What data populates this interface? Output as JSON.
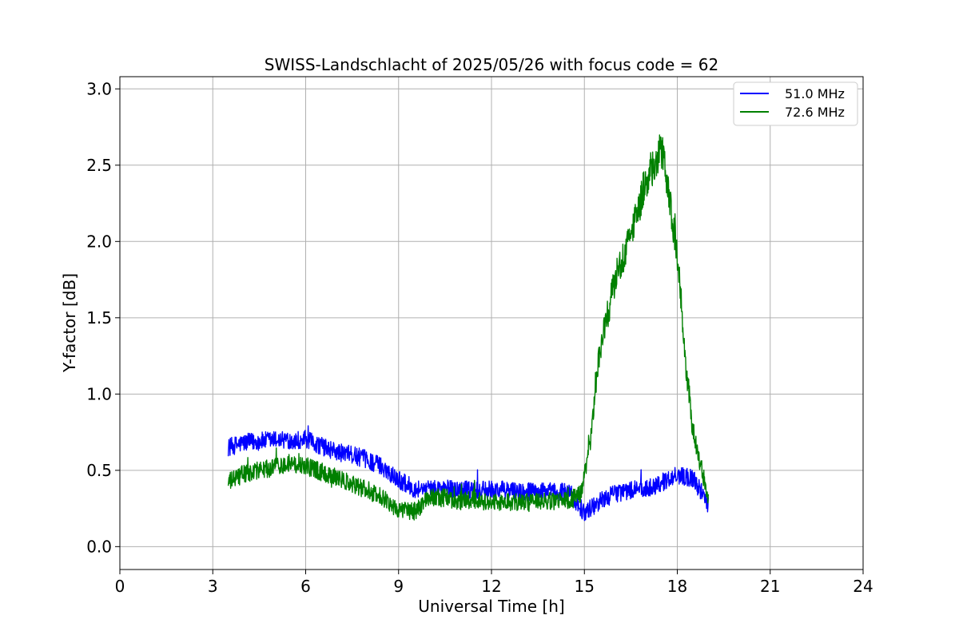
{
  "chart_data": {
    "type": "line",
    "title": "SWISS-Landschlacht of 2025/05/26 with focus code = 62",
    "xlabel": "Universal Time [h]",
    "ylabel": "Y-factor [dB]",
    "xlim": [
      0,
      24
    ],
    "ylim": [
      -0.15,
      3.08
    ],
    "xticks": [
      0,
      3,
      6,
      9,
      12,
      15,
      18,
      21,
      24
    ],
    "xtick_labels": [
      "0",
      "3",
      "6",
      "9",
      "12",
      "15",
      "18",
      "21",
      "24"
    ],
    "yticks": [
      0.0,
      0.5,
      1.0,
      1.5,
      2.0,
      2.5,
      3.0
    ],
    "ytick_labels": [
      "0.0",
      "0.5",
      "1.0",
      "1.5",
      "2.0",
      "2.5",
      "3.0"
    ],
    "grid": true,
    "legend_position": "top-right",
    "series": [
      {
        "name": "51.0 MHz",
        "color": "#0000ff",
        "x": [
          3.5,
          4.0,
          4.5,
          5.0,
          5.5,
          6.0,
          6.5,
          7.0,
          7.5,
          8.0,
          8.5,
          9.0,
          9.5,
          10.0,
          10.5,
          11.0,
          11.5,
          12.0,
          12.5,
          13.0,
          13.5,
          14.0,
          14.5,
          15.0,
          15.5,
          16.0,
          16.5,
          17.0,
          17.5,
          18.0,
          18.5,
          19.0
        ],
        "y": [
          0.65,
          0.68,
          0.69,
          0.7,
          0.7,
          0.7,
          0.66,
          0.62,
          0.6,
          0.57,
          0.52,
          0.44,
          0.38,
          0.38,
          0.38,
          0.37,
          0.37,
          0.37,
          0.37,
          0.36,
          0.36,
          0.36,
          0.36,
          0.22,
          0.3,
          0.35,
          0.37,
          0.38,
          0.42,
          0.47,
          0.45,
          0.28
        ],
        "noise": 0.06
      },
      {
        "name": "72.6 MHz",
        "color": "#008000",
        "x": [
          3.5,
          4.0,
          4.5,
          5.0,
          5.5,
          6.0,
          6.5,
          7.0,
          7.5,
          8.0,
          8.5,
          9.0,
          9.5,
          10.0,
          10.5,
          11.0,
          11.5,
          12.0,
          12.5,
          13.0,
          13.5,
          14.0,
          14.5,
          14.9,
          15.2,
          15.5,
          16.0,
          16.5,
          17.0,
          17.5,
          18.0,
          18.3,
          18.5,
          18.8,
          19.0
        ],
        "y": [
          0.42,
          0.48,
          0.5,
          0.52,
          0.55,
          0.53,
          0.49,
          0.45,
          0.41,
          0.37,
          0.32,
          0.24,
          0.23,
          0.32,
          0.32,
          0.3,
          0.3,
          0.29,
          0.29,
          0.29,
          0.29,
          0.3,
          0.3,
          0.35,
          0.7,
          1.3,
          1.75,
          2.05,
          2.4,
          2.6,
          1.9,
          1.15,
          0.75,
          0.5,
          0.3
        ],
        "noise": 0.06
      }
    ]
  }
}
